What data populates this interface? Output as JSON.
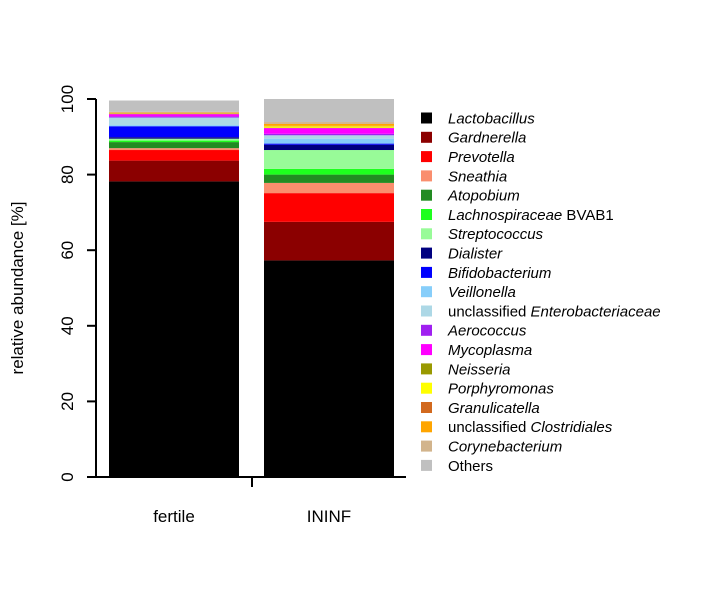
{
  "chart_data": {
    "type": "bar",
    "stacked": true,
    "title": "",
    "xlabel": "",
    "ylabel": "relative abundance [%]",
    "ylim": [
      0,
      100
    ],
    "yticks": [
      0,
      20,
      40,
      60,
      80,
      100
    ],
    "grid": false,
    "legend_position": "right",
    "categories": [
      "fertile",
      "ININF"
    ],
    "series": [
      {
        "name": "Lactobacillus",
        "name_parts": [
          {
            "text": "Lactobacillus",
            "italic": true
          }
        ],
        "color": "#000000",
        "values": [
          78.2,
          57.3
        ]
      },
      {
        "name": "Gardnerella",
        "name_parts": [
          {
            "text": "Gardnerella",
            "italic": true
          }
        ],
        "color": "#8B0000",
        "values": [
          5.5,
          10.2
        ]
      },
      {
        "name": "Prevotella",
        "name_parts": [
          {
            "text": "Prevotella",
            "italic": true
          }
        ],
        "color": "#FF0000",
        "values": [
          2.8,
          7.6
        ]
      },
      {
        "name": "Sneathia",
        "name_parts": [
          {
            "text": "Sneathia",
            "italic": true
          }
        ],
        "color": "#FA8E6E",
        "values": [
          0.5,
          2.7
        ]
      },
      {
        "name": "Atopobium",
        "name_parts": [
          {
            "text": "Atopobium",
            "italic": true
          }
        ],
        "color": "#228B22",
        "values": [
          1.6,
          2.2
        ]
      },
      {
        "name": "Lachnospiraceae BVAB1",
        "name_parts": [
          {
            "text": "Lachnospiraceae",
            "italic": true
          },
          {
            "text": " BVAB1",
            "italic": false
          }
        ],
        "color": "#1EFF1E",
        "values": [
          0.4,
          1.5
        ]
      },
      {
        "name": "Streptococcus",
        "name_parts": [
          {
            "text": "Streptococcus",
            "italic": true
          }
        ],
        "color": "#98FB98",
        "values": [
          0.5,
          5.0
        ]
      },
      {
        "name": "Dialister",
        "name_parts": [
          {
            "text": "Dialister",
            "italic": true
          }
        ],
        "color": "#000080",
        "values": [
          0.4,
          1.4
        ]
      },
      {
        "name": "Bifidobacterium",
        "name_parts": [
          {
            "text": "Bifidobacterium",
            "italic": true
          }
        ],
        "color": "#0000FF",
        "values": [
          2.9,
          0.3
        ]
      },
      {
        "name": "Veillonella",
        "name_parts": [
          {
            "text": "Veillonella",
            "italic": true
          }
        ],
        "color": "#87CEFA",
        "values": [
          0.3,
          1.3
        ]
      },
      {
        "name": "unclassified Enterobacteriaceae",
        "name_parts": [
          {
            "text": "unclassified ",
            "italic": false
          },
          {
            "text": "Enterobacteriaceae",
            "italic": true
          }
        ],
        "color": "#ADD8E6",
        "values": [
          2.0,
          0.9
        ]
      },
      {
        "name": "Aerococcus",
        "name_parts": [
          {
            "text": "Aerococcus",
            "italic": true
          }
        ],
        "color": "#A020F0",
        "values": [
          0.3,
          0.4
        ]
      },
      {
        "name": "Mycoplasma",
        "name_parts": [
          {
            "text": "Mycoplasma",
            "italic": true
          }
        ],
        "color": "#FF00FF",
        "values": [
          0.6,
          1.5
        ]
      },
      {
        "name": "Neisseria",
        "name_parts": [
          {
            "text": "Neisseria",
            "italic": true
          }
        ],
        "color": "#999900",
        "values": [
          0.1,
          0.1
        ]
      },
      {
        "name": "Porphyromonas",
        "name_parts": [
          {
            "text": "Porphyromonas",
            "italic": true
          }
        ],
        "color": "#FFFF00",
        "values": [
          0.1,
          0.4
        ]
      },
      {
        "name": "Granulicatella",
        "name_parts": [
          {
            "text": "Granulicatella",
            "italic": true
          }
        ],
        "color": "#D2691E",
        "values": [
          0.1,
          0.1
        ]
      },
      {
        "name": "unclassified Clostridiales",
        "name_parts": [
          {
            "text": "unclassified ",
            "italic": false
          },
          {
            "text": "Clostridiales",
            "italic": true
          }
        ],
        "color": "#FFA500",
        "values": [
          0.1,
          0.5
        ]
      },
      {
        "name": "Corynebacterium",
        "name_parts": [
          {
            "text": "Corynebacterium",
            "italic": true
          }
        ],
        "color": "#D2B48C",
        "values": [
          0.2,
          0.5
        ]
      },
      {
        "name": "Others",
        "name_parts": [
          {
            "text": "Others",
            "italic": false
          }
        ],
        "color": "#C0C0C0",
        "values": [
          3.0,
          6.1
        ]
      }
    ]
  }
}
